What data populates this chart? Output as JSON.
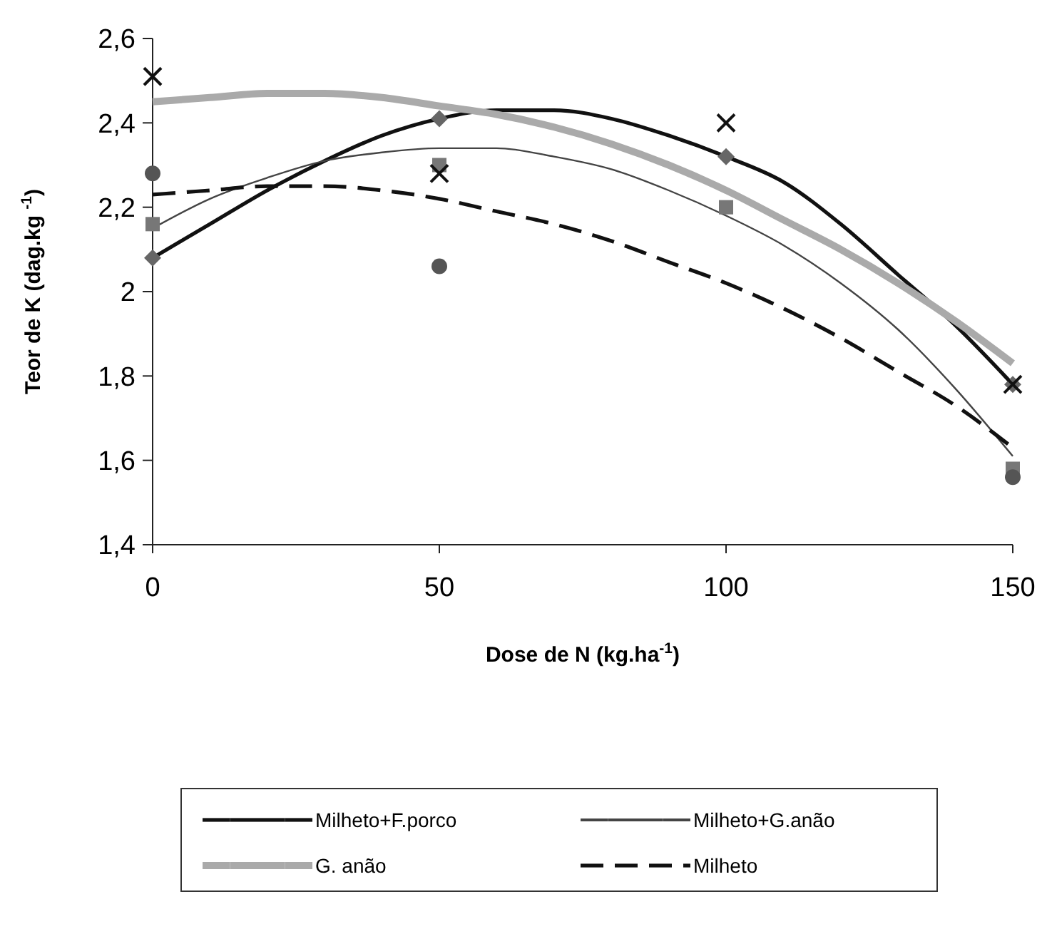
{
  "chart_data": {
    "type": "line",
    "xlabel": "Dose de N (kg.ha$^{-1}$)",
    "ylabel": "Teor de K (dag.kg $^{-1}$)",
    "xlim": [
      0,
      150
    ],
    "xticks": [
      0,
      50,
      100,
      150
    ],
    "ylim": [
      1.4,
      2.6
    ],
    "yticks": [
      {
        "value": 1.4,
        "label": "1,4"
      },
      {
        "value": 1.6,
        "label": "1,6"
      },
      {
        "value": 1.8,
        "label": "1,8"
      },
      {
        "value": 2,
        "label": "2"
      },
      {
        "value": 2.2,
        "label": "2,2"
      },
      {
        "value": 2.4,
        "label": "2,4"
      },
      {
        "value": 2.6,
        "label": "2,6"
      }
    ],
    "grid": false,
    "legend": "bottom",
    "series": [
      {
        "name": "Milheto+F.porco",
        "color": "#111111",
        "line_style": "solid",
        "x": [
          0,
          10,
          20,
          30,
          40,
          50,
          60,
          70,
          80,
          90,
          100,
          110,
          120,
          130,
          140,
          150
        ],
        "values": [
          2.08,
          2.16,
          2.24,
          2.31,
          2.37,
          2.41,
          2.43,
          2.43,
          2.41,
          2.37,
          2.32,
          2.26,
          2.16,
          2.04,
          1.92,
          1.78
        ]
      },
      {
        "name": "Milheto+G.anão",
        "color": "#444444",
        "line_style": "solid",
        "x": [
          0,
          10,
          20,
          30,
          40,
          50,
          60,
          70,
          80,
          90,
          100,
          110,
          120,
          130,
          140,
          150
        ],
        "values": [
          2.15,
          2.22,
          2.27,
          2.31,
          2.33,
          2.34,
          2.34,
          2.32,
          2.29,
          2.24,
          2.18,
          2.11,
          2.02,
          1.91,
          1.77,
          1.61
        ]
      },
      {
        "name": "G. anão",
        "color": "#aaaaaa",
        "line_style": "solid",
        "x": [
          0,
          10,
          20,
          30,
          40,
          50,
          60,
          70,
          80,
          90,
          100,
          110,
          120,
          130,
          140,
          150
        ],
        "values": [
          2.45,
          2.46,
          2.47,
          2.47,
          2.46,
          2.44,
          2.42,
          2.39,
          2.35,
          2.3,
          2.24,
          2.17,
          2.1,
          2.02,
          1.93,
          1.83
        ]
      },
      {
        "name": "Milheto",
        "color": "#111111",
        "line_style": "dashed",
        "x": [
          0,
          10,
          20,
          30,
          40,
          50,
          60,
          70,
          80,
          90,
          100,
          110,
          120,
          130,
          140,
          150
        ],
        "values": [
          2.23,
          2.24,
          2.25,
          2.25,
          2.24,
          2.22,
          2.19,
          2.16,
          2.12,
          2.07,
          2.02,
          1.96,
          1.89,
          1.81,
          1.73,
          1.63
        ]
      },
      {
        "type": "scatter",
        "marker": "diamond",
        "color": "#666666",
        "x": [
          0,
          50,
          100,
          150
        ],
        "values": [
          2.08,
          2.41,
          2.32,
          1.78
        ]
      },
      {
        "type": "scatter",
        "marker": "square",
        "color": "#777777",
        "x": [
          0,
          50,
          100,
          150
        ],
        "values": [
          2.16,
          2.3,
          2.2,
          1.58
        ]
      },
      {
        "type": "scatter",
        "marker": "cross",
        "color": "#111111",
        "x": [
          0,
          50,
          100,
          150
        ],
        "values": [
          2.51,
          2.28,
          2.4,
          1.78
        ]
      },
      {
        "type": "scatter",
        "marker": "circle",
        "color": "#555555",
        "x": [
          0,
          50,
          150
        ],
        "values": [
          2.28,
          2.06,
          1.56
        ]
      }
    ]
  }
}
